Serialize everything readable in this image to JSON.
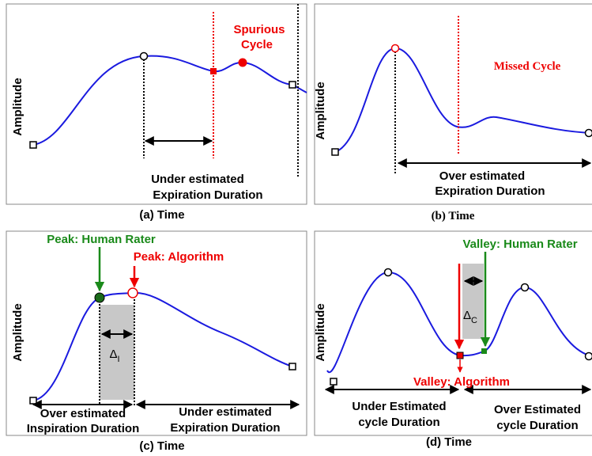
{
  "panels": {
    "a": {
      "y_label": "Amplitude",
      "x_label": "(a) Time",
      "event_label": [
        "Spurious",
        "Cycle"
      ],
      "duration_label": [
        "Under estimated",
        "Expiration Duration"
      ]
    },
    "b": {
      "y_label": "Amplitude",
      "x_label": "(b) Time",
      "event_label": "Missed Cycle",
      "duration_label": [
        "Over estimated",
        "Expiration Duration"
      ]
    },
    "c": {
      "y_label": "Amplitude",
      "x_label": "(c) Time",
      "human_label": "Peak: Human Rater",
      "algorithm_label": "Peak: Algorithm",
      "delta": "Δ",
      "delta_sub": "I",
      "left_duration": [
        "Over estimated",
        "Inspiration Duration"
      ],
      "right_duration": [
        "Under estimated",
        "Expiration Duration"
      ]
    },
    "d": {
      "y_label": "Amplitude",
      "x_label": "(d) Time",
      "human_label": "Valley: Human Rater",
      "algorithm_label": "Valley: Algorithm",
      "delta": "Δ",
      "delta_sub": "C",
      "left_duration": [
        "Under Estimated",
        "cycle Duration"
      ],
      "right_duration": [
        "Over Estimated",
        "cycle Duration"
      ]
    }
  }
}
